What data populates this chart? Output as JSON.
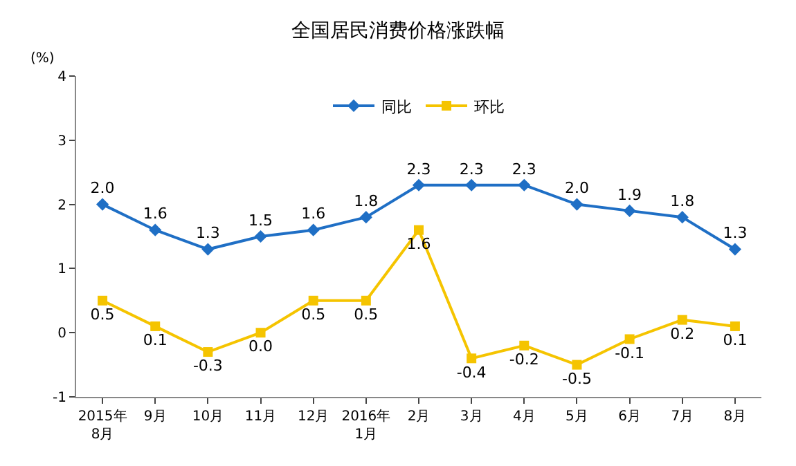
{
  "chart_data": {
    "type": "line",
    "title": "全国居民消费价格涨跌幅",
    "ylabel": "(%)",
    "categories": [
      "2015年\n8月",
      "9月",
      "10月",
      "11月",
      "12月",
      "2016年\n1月",
      "2月",
      "3月",
      "4月",
      "5月",
      "6月",
      "7月",
      "8月"
    ],
    "series": [
      {
        "name": "同比",
        "color": "#1f6fc5",
        "marker": "diamond",
        "values": [
          2.0,
          1.6,
          1.3,
          1.5,
          1.6,
          1.8,
          2.3,
          2.3,
          2.3,
          2.0,
          1.9,
          1.8,
          1.3
        ],
        "value_labels": [
          "2.0",
          "1.6",
          "1.3",
          "1.5",
          "1.6",
          "1.8",
          "2.3",
          "2.3",
          "2.3",
          "2.0",
          "1.9",
          "1.8",
          "1.3"
        ]
      },
      {
        "name": "环比",
        "color": "#f5c400",
        "marker": "square",
        "values": [
          0.5,
          0.1,
          -0.3,
          0.0,
          0.5,
          0.5,
          1.6,
          -0.4,
          -0.2,
          -0.5,
          -0.1,
          0.2,
          0.1
        ],
        "value_labels": [
          "0.5",
          "0.1",
          "-0.3",
          "0.0",
          "0.5",
          "0.5",
          "1.6",
          "-0.4",
          "-0.2",
          "-0.5",
          "-0.1",
          "0.2",
          "0.1"
        ]
      }
    ],
    "ylim": [
      -1,
      4
    ],
    "yticks": [
      -1,
      0,
      1,
      2,
      3,
      4
    ],
    "grid": false,
    "legend": "top"
  }
}
